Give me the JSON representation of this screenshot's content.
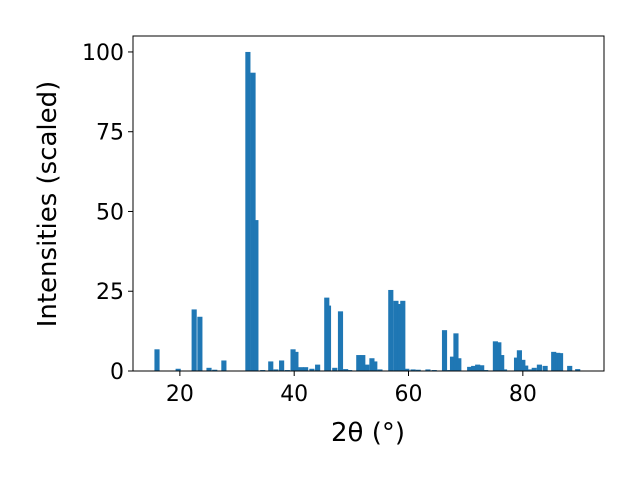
{
  "chart_data": {
    "type": "bar",
    "xlabel": "2θ (°)",
    "ylabel": "Intensities (scaled)",
    "x": [
      16.0,
      19.7,
      22.5,
      23.5,
      25.1,
      26.1,
      27.7,
      31.9,
      32.8,
      33.3,
      34.5,
      35.9,
      36.8,
      37.8,
      38.8,
      39.8,
      40.3,
      41.2,
      42.0,
      43.1,
      44.1,
      45.7,
      46.0,
      47.1,
      48.1,
      49.0,
      49.7,
      51.3,
      52.0,
      52.7,
      53.6,
      54.1,
      55.0,
      56.9,
      57.8,
      58.5,
      59.0,
      59.7,
      60.8,
      61.7,
      63.4,
      64.5,
      66.3,
      67.2,
      67.7,
      68.3,
      68.8,
      70.7,
      71.4,
      72.1,
      72.8,
      73.5,
      75.2,
      75.8,
      76.3,
      76.8,
      78.9,
      79.4,
      80.0,
      80.5,
      81.2,
      82.0,
      82.9,
      83.9,
      85.4,
      86.1,
      86.6,
      88.2,
      89.6
    ],
    "values": [
      6.8,
      0.7,
      19.3,
      17.0,
      1.0,
      0.4,
      3.3,
      100,
      93.5,
      47.3,
      0.3,
      3.0,
      0.5,
      3.3,
      0.3,
      6.8,
      6.0,
      1.2,
      1.2,
      0.7,
      2.0,
      23.0,
      20.5,
      1.0,
      18.7,
      0.6,
      0.3,
      5.0,
      5.0,
      2.0,
      4.0,
      3.0,
      0.5,
      25.4,
      22.0,
      21.0,
      22.0,
      0.7,
      0.5,
      0.4,
      0.5,
      0.3,
      12.8,
      0.3,
      4.5,
      11.8,
      4.0,
      1.3,
      1.6,
      2.0,
      1.8,
      0.3,
      9.3,
      9.0,
      5.0,
      0.5,
      4.2,
      6.5,
      3.5,
      1.7,
      0.5,
      1.0,
      2.0,
      1.6,
      6.0,
      5.7,
      5.6,
      1.6,
      0.6
    ],
    "color": "#1f77b4",
    "xlim": [
      11.8,
      94.2
    ],
    "xticks": [
      20,
      40,
      60,
      80
    ],
    "ylim": [
      0,
      105
    ],
    "yticks": [
      0,
      25,
      50,
      75,
      100
    ]
  }
}
